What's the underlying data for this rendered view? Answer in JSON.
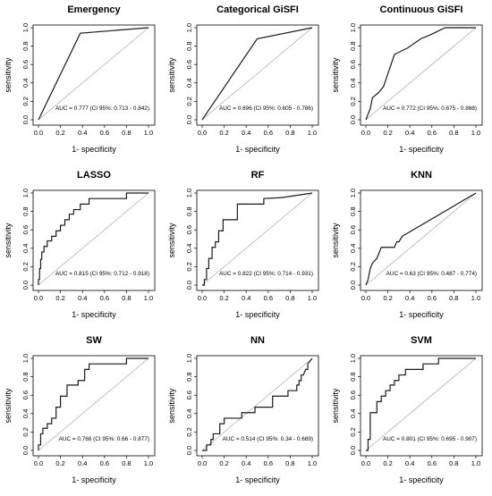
{
  "figure": {
    "xlabel": "1- specificity",
    "ylabel": "sensitivity"
  },
  "chart_data": [
    {
      "type": "line",
      "title": "Emergency",
      "xlabel": "1- specificity",
      "ylabel": "sensitivity",
      "xlim": [
        0,
        1
      ],
      "ylim": [
        0,
        1
      ],
      "xticks": [
        "0.0",
        "0.2",
        "0.4",
        "0.6",
        "0.8",
        "1.0"
      ],
      "yticks": [
        "0.0",
        "0.2",
        "0.4",
        "0.6",
        "0.8",
        "1.0"
      ],
      "annotation": "AUC = 0.777 (CI 95%: 0.713 - 0.842)",
      "series": [
        {
          "x": [
            0,
            0.38,
            1.0
          ],
          "y": [
            0,
            0.94,
            1.0
          ]
        }
      ]
    },
    {
      "type": "line",
      "title": "Categorical GiSFI",
      "xlabel": "1- specificity",
      "ylabel": "sensitivity",
      "xlim": [
        0,
        1
      ],
      "ylim": [
        0,
        1
      ],
      "xticks": [
        "0.0",
        "0.2",
        "0.4",
        "0.6",
        "0.8",
        "1.0"
      ],
      "yticks": [
        "0.0",
        "0.2",
        "0.4",
        "0.6",
        "0.8",
        "1.0"
      ],
      "annotation": "AUC = 0.696 (CI 95%: 0.605 - 0.786)",
      "series": [
        {
          "x": [
            0,
            0.5,
            1.0
          ],
          "y": [
            0,
            0.88,
            1.0
          ]
        }
      ]
    },
    {
      "type": "line",
      "title": "Continuous GiSFI",
      "xlabel": "1- specificity",
      "ylabel": "sensitivity",
      "xlim": [
        0,
        1
      ],
      "ylim": [
        0,
        1
      ],
      "xticks": [
        "0.0",
        "0.2",
        "0.4",
        "0.6",
        "0.8",
        "1.0"
      ],
      "yticks": [
        "0.0",
        "0.2",
        "0.4",
        "0.6",
        "0.8",
        "1.0"
      ],
      "annotation": "AUC = 0.772 (CI 95%: 0.675 - 0.868)",
      "series": [
        {
          "x": [
            0,
            0.04,
            0.06,
            0.12,
            0.16,
            0.26,
            0.38,
            0.5,
            0.6,
            0.72,
            1.0
          ],
          "y": [
            0,
            0.12,
            0.24,
            0.3,
            0.36,
            0.71,
            0.78,
            0.88,
            0.93,
            1.0,
            1.0
          ]
        }
      ]
    },
    {
      "type": "line",
      "title": "LASSO",
      "xlabel": "1- specificity",
      "ylabel": "sensitivity",
      "xlim": [
        0,
        1
      ],
      "ylim": [
        0,
        1
      ],
      "xticks": [
        "0.0",
        "0.2",
        "0.4",
        "0.6",
        "0.8",
        "1.0"
      ],
      "yticks": [
        "0.0",
        "0.2",
        "0.4",
        "0.6",
        "0.8",
        "1.0"
      ],
      "annotation": "AUC = 0.815 (CI 95%: 0.712 - 0.918)",
      "series": [
        {
          "x": [
            0,
            0,
            0.01,
            0.01,
            0.02,
            0.02,
            0.03,
            0.03,
            0.05,
            0.05,
            0.08,
            0.08,
            0.12,
            0.12,
            0.16,
            0.16,
            0.2,
            0.2,
            0.24,
            0.24,
            0.28,
            0.28,
            0.32,
            0.32,
            0.38,
            0.38,
            0.46,
            0.46,
            0.8,
            0.8,
            1.0
          ],
          "y": [
            0,
            0.06,
            0.06,
            0.18,
            0.18,
            0.28,
            0.28,
            0.36,
            0.36,
            0.42,
            0.42,
            0.48,
            0.48,
            0.53,
            0.53,
            0.59,
            0.59,
            0.65,
            0.65,
            0.71,
            0.71,
            0.77,
            0.77,
            0.82,
            0.82,
            0.88,
            0.88,
            0.94,
            0.94,
            1.0,
            1.0
          ]
        }
      ]
    },
    {
      "type": "line",
      "title": "RF",
      "xlabel": "1- specificity",
      "ylabel": "sensitivity",
      "xlim": [
        0,
        1
      ],
      "ylim": [
        0,
        1
      ],
      "xticks": [
        "0.0",
        "0.2",
        "0.4",
        "0.6",
        "0.8",
        "1.0"
      ],
      "yticks": [
        "0.0",
        "0.2",
        "0.4",
        "0.6",
        "0.8",
        "1.0"
      ],
      "annotation": "AUC = 0.822 (CI 95%: 0.714 - 0.931)",
      "series": [
        {
          "x": [
            0,
            0.02,
            0.02,
            0.04,
            0.04,
            0.06,
            0.06,
            0.09,
            0.09,
            0.12,
            0.12,
            0.15,
            0.15,
            0.19,
            0.19,
            0.32,
            0.32,
            0.56,
            0.56,
            0.72,
            1.0
          ],
          "y": [
            0,
            0,
            0.06,
            0.06,
            0.18,
            0.18,
            0.29,
            0.29,
            0.41,
            0.41,
            0.47,
            0.47,
            0.59,
            0.59,
            0.71,
            0.71,
            0.88,
            0.88,
            0.94,
            0.95,
            1.0
          ]
        }
      ]
    },
    {
      "type": "line",
      "title": "KNN",
      "xlabel": "1- specificity",
      "ylabel": "sensitivity",
      "xlim": [
        0,
        1
      ],
      "ylim": [
        0,
        1
      ],
      "xticks": [
        "0.0",
        "0.2",
        "0.4",
        "0.6",
        "0.8",
        "1.0"
      ],
      "yticks": [
        "0.0",
        "0.2",
        "0.4",
        "0.6",
        "0.8",
        "1.0"
      ],
      "annotation": "AUC = 0.63 (CI 95%: 0.487 - 0.774)",
      "series": [
        {
          "x": [
            0,
            0.02,
            0.04,
            0.06,
            0.1,
            0.14,
            0.26,
            0.28,
            0.3,
            0.33,
            1.0
          ],
          "y": [
            0,
            0.06,
            0.18,
            0.24,
            0.29,
            0.41,
            0.41,
            0.47,
            0.47,
            0.53,
            1.0
          ]
        }
      ]
    },
    {
      "type": "line",
      "title": "SW",
      "xlabel": "1- specificity",
      "ylabel": "sensitivity",
      "xlim": [
        0,
        1
      ],
      "ylim": [
        0,
        1
      ],
      "xticks": [
        "0.0",
        "0.2",
        "0.4",
        "0.6",
        "0.8",
        "1.0"
      ],
      "yticks": [
        "0.0",
        "0.2",
        "0.4",
        "0.6",
        "0.8",
        "1.0"
      ],
      "annotation": "AUC = 0.768 (CI 95%: 0.66 - 0.877)",
      "series": [
        {
          "x": [
            0,
            0,
            0.02,
            0.02,
            0.04,
            0.04,
            0.08,
            0.08,
            0.12,
            0.12,
            0.16,
            0.16,
            0.2,
            0.2,
            0.26,
            0.26,
            0.36,
            0.36,
            0.42,
            0.42,
            0.46,
            0.46,
            0.8,
            0.8,
            1.0
          ],
          "y": [
            0,
            0.06,
            0.06,
            0.18,
            0.18,
            0.24,
            0.24,
            0.29,
            0.29,
            0.35,
            0.35,
            0.47,
            0.47,
            0.59,
            0.59,
            0.71,
            0.71,
            0.76,
            0.76,
            0.88,
            0.88,
            0.94,
            0.94,
            1.0,
            1.0
          ]
        }
      ]
    },
    {
      "type": "line",
      "title": "NN",
      "xlabel": "1- specificity",
      "ylabel": "sensitivity",
      "xlim": [
        0,
        1
      ],
      "ylim": [
        0,
        1
      ],
      "xticks": [
        "0.0",
        "0.2",
        "0.4",
        "0.6",
        "0.8",
        "1.0"
      ],
      "yticks": [
        "0.0",
        "0.2",
        "0.4",
        "0.6",
        "0.8",
        "1.0"
      ],
      "annotation": "AUC = 0.514 (CI 95%: 0.34 - 0.689)",
      "series": [
        {
          "x": [
            0,
            0.04,
            0.04,
            0.08,
            0.08,
            0.1,
            0.1,
            0.16,
            0.16,
            0.2,
            0.2,
            0.36,
            0.36,
            0.48,
            0.48,
            0.64,
            0.64,
            0.78,
            0.78,
            0.86,
            0.86,
            0.88,
            0.88,
            0.9,
            0.9,
            0.92,
            0.94,
            0.96,
            0.96,
            1.0
          ],
          "y": [
            0,
            0,
            0.06,
            0.06,
            0.12,
            0.12,
            0.18,
            0.18,
            0.29,
            0.29,
            0.35,
            0.35,
            0.41,
            0.41,
            0.47,
            0.47,
            0.59,
            0.59,
            0.65,
            0.65,
            0.71,
            0.71,
            0.76,
            0.76,
            0.82,
            0.82,
            0.88,
            0.88,
            0.94,
            1.0
          ]
        }
      ]
    },
    {
      "type": "line",
      "title": "SVM",
      "xlabel": "1- specificity",
      "ylabel": "sensitivity",
      "xlim": [
        0,
        1
      ],
      "ylim": [
        0,
        1
      ],
      "xticks": [
        "0.0",
        "0.2",
        "0.4",
        "0.6",
        "0.8",
        "1.0"
      ],
      "yticks": [
        "0.0",
        "0.2",
        "0.4",
        "0.6",
        "0.8",
        "1.0"
      ],
      "annotation": "AUC = 0.801 (CI 95%: 0.695 - 0.907)",
      "series": [
        {
          "x": [
            0,
            0.02,
            0.02,
            0.04,
            0.04,
            0.1,
            0.1,
            0.14,
            0.14,
            0.18,
            0.18,
            0.22,
            0.22,
            0.26,
            0.26,
            0.3,
            0.3,
            0.36,
            0.36,
            0.52,
            0.52,
            0.66,
            0.66,
            1.0
          ],
          "y": [
            0,
            0,
            0.12,
            0.12,
            0.41,
            0.41,
            0.53,
            0.53,
            0.59,
            0.59,
            0.65,
            0.65,
            0.71,
            0.71,
            0.76,
            0.76,
            0.82,
            0.82,
            0.88,
            0.88,
            0.94,
            0.94,
            1.0,
            1.0
          ]
        }
      ]
    }
  ]
}
